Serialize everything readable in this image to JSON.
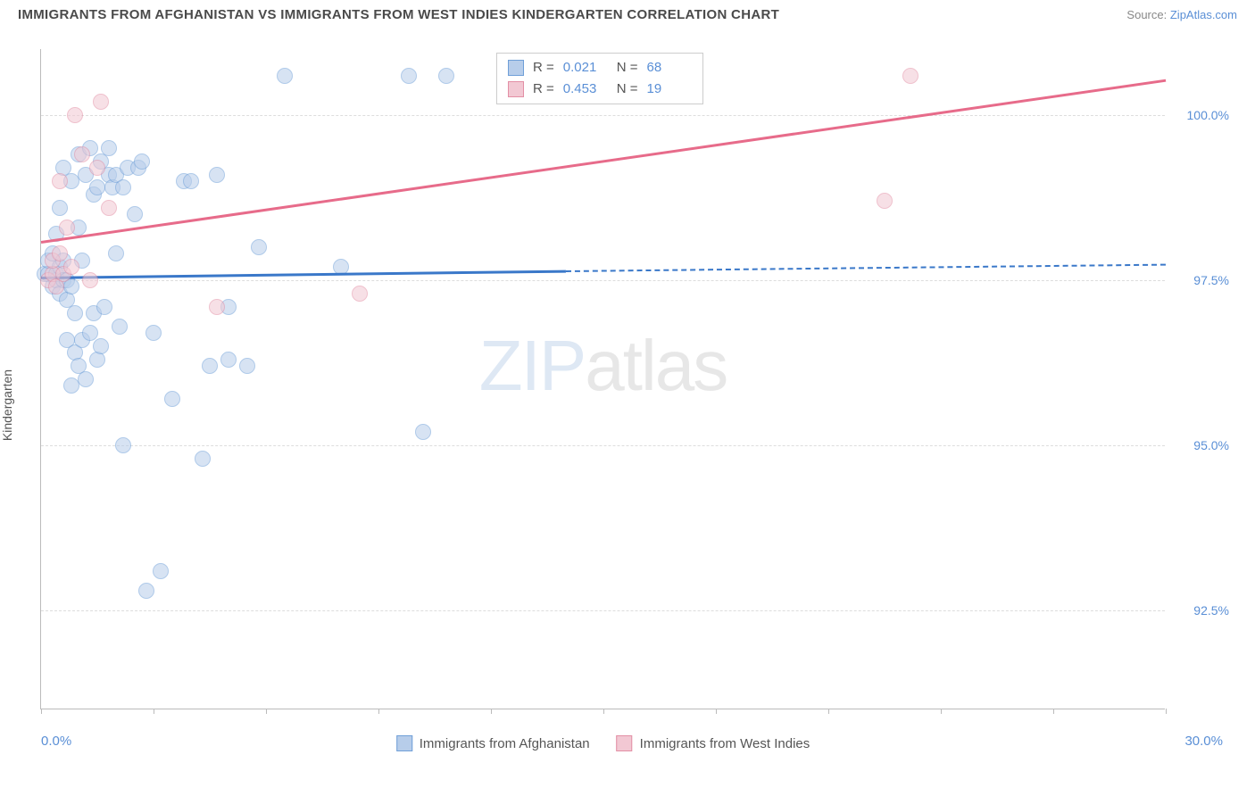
{
  "header": {
    "title": "IMMIGRANTS FROM AFGHANISTAN VS IMMIGRANTS FROM WEST INDIES KINDERGARTEN CORRELATION CHART",
    "source_label": "Source:",
    "source_name": "ZipAtlas.com"
  },
  "chart": {
    "type": "scatter",
    "ylabel": "Kindergarten",
    "xlim": [
      0,
      30
    ],
    "ylim": [
      91.0,
      101.0
    ],
    "y_ticks": [
      92.5,
      95.0,
      97.5,
      100.0
    ],
    "y_tick_labels": [
      "92.5%",
      "95.0%",
      "97.5%",
      "100.0%"
    ],
    "x_tick_positions": [
      0,
      3,
      6,
      9,
      12,
      15,
      18,
      21,
      24,
      27,
      30
    ],
    "x_range_labels": {
      "left": "0.0%",
      "right": "30.0%"
    },
    "background_color": "#ffffff",
    "grid_color": "#dddddd",
    "axis_color": "#bbbbbb",
    "tick_label_color": "#5a8fd6",
    "marker_radius": 9,
    "marker_opacity": 0.55,
    "series": [
      {
        "name": "Immigrants from Afghanistan",
        "color_fill": "#b7cdea",
        "color_stroke": "#6f9fd8",
        "R": "0.021",
        "N": "68",
        "trend_line": {
          "color": "#3a78c9",
          "width": 2.5,
          "solid": {
            "x1": 0,
            "y1": 97.55,
            "x2": 14.0,
            "y2": 97.65
          },
          "dashed": {
            "x1": 14.0,
            "y1": 97.65,
            "x2": 30.0,
            "y2": 97.75
          }
        },
        "points": [
          [
            0.1,
            97.6
          ],
          [
            0.2,
            97.6
          ],
          [
            0.2,
            97.8
          ],
          [
            0.3,
            97.4
          ],
          [
            0.3,
            97.9
          ],
          [
            0.4,
            97.5
          ],
          [
            0.4,
            98.2
          ],
          [
            0.4,
            97.6
          ],
          [
            0.5,
            97.3
          ],
          [
            0.5,
            97.7
          ],
          [
            0.5,
            98.6
          ],
          [
            0.6,
            97.5
          ],
          [
            0.6,
            97.8
          ],
          [
            0.6,
            99.2
          ],
          [
            0.7,
            96.6
          ],
          [
            0.7,
            97.2
          ],
          [
            0.7,
            97.5
          ],
          [
            0.8,
            95.9
          ],
          [
            0.8,
            97.4
          ],
          [
            0.8,
            99.0
          ],
          [
            0.9,
            96.4
          ],
          [
            0.9,
            97.0
          ],
          [
            1.0,
            96.2
          ],
          [
            1.0,
            98.3
          ],
          [
            1.0,
            99.4
          ],
          [
            1.1,
            96.6
          ],
          [
            1.1,
            97.8
          ],
          [
            1.2,
            96.0
          ],
          [
            1.2,
            99.1
          ],
          [
            1.3,
            96.7
          ],
          [
            1.3,
            99.5
          ],
          [
            1.4,
            97.0
          ],
          [
            1.4,
            98.8
          ],
          [
            1.5,
            96.3
          ],
          [
            1.5,
            98.9
          ],
          [
            1.6,
            96.5
          ],
          [
            1.6,
            99.3
          ],
          [
            1.7,
            97.1
          ],
          [
            1.8,
            99.1
          ],
          [
            1.8,
            99.5
          ],
          [
            1.9,
            98.9
          ],
          [
            2.0,
            97.9
          ],
          [
            2.0,
            99.1
          ],
          [
            2.1,
            96.8
          ],
          [
            2.2,
            95.0
          ],
          [
            2.2,
            98.9
          ],
          [
            2.3,
            99.2
          ],
          [
            2.5,
            98.5
          ],
          [
            2.6,
            99.2
          ],
          [
            2.7,
            99.3
          ],
          [
            2.8,
            92.8
          ],
          [
            3.0,
            96.7
          ],
          [
            3.2,
            93.1
          ],
          [
            3.5,
            95.7
          ],
          [
            3.8,
            99.0
          ],
          [
            4.0,
            99.0
          ],
          [
            4.3,
            94.8
          ],
          [
            4.5,
            96.2
          ],
          [
            4.7,
            99.1
          ],
          [
            5.0,
            96.3
          ],
          [
            5.0,
            97.1
          ],
          [
            5.5,
            96.2
          ],
          [
            5.8,
            98.0
          ],
          [
            6.5,
            100.6
          ],
          [
            8.0,
            97.7
          ],
          [
            9.8,
            100.6
          ],
          [
            10.2,
            95.2
          ],
          [
            10.8,
            100.6
          ]
        ]
      },
      {
        "name": "Immigrants from West Indies",
        "color_fill": "#f2c8d3",
        "color_stroke": "#e38fa5",
        "R": "0.453",
        "N": "19",
        "trend_line": {
          "color": "#e76b8a",
          "width": 2.5,
          "solid": {
            "x1": 0,
            "y1": 98.1,
            "x2": 30.0,
            "y2": 100.55
          },
          "dashed": null
        },
        "points": [
          [
            0.2,
            97.5
          ],
          [
            0.3,
            97.6
          ],
          [
            0.3,
            97.8
          ],
          [
            0.4,
            97.4
          ],
          [
            0.5,
            97.9
          ],
          [
            0.5,
            99.0
          ],
          [
            0.6,
            97.6
          ],
          [
            0.7,
            98.3
          ],
          [
            0.8,
            97.7
          ],
          [
            0.9,
            100.0
          ],
          [
            1.1,
            99.4
          ],
          [
            1.3,
            97.5
          ],
          [
            1.5,
            99.2
          ],
          [
            1.6,
            100.2
          ],
          [
            1.8,
            98.6
          ],
          [
            4.7,
            97.1
          ],
          [
            22.5,
            98.7
          ],
          [
            23.2,
            100.6
          ],
          [
            8.5,
            97.3
          ]
        ]
      }
    ],
    "legend_top": {
      "R_label": "R =",
      "N_label": "N ="
    },
    "legend_bottom": {
      "series1": "Immigrants from Afghanistan",
      "series2": "Immigrants from West Indies"
    },
    "watermark": {
      "part1": "ZIP",
      "part2": "atlas"
    }
  }
}
